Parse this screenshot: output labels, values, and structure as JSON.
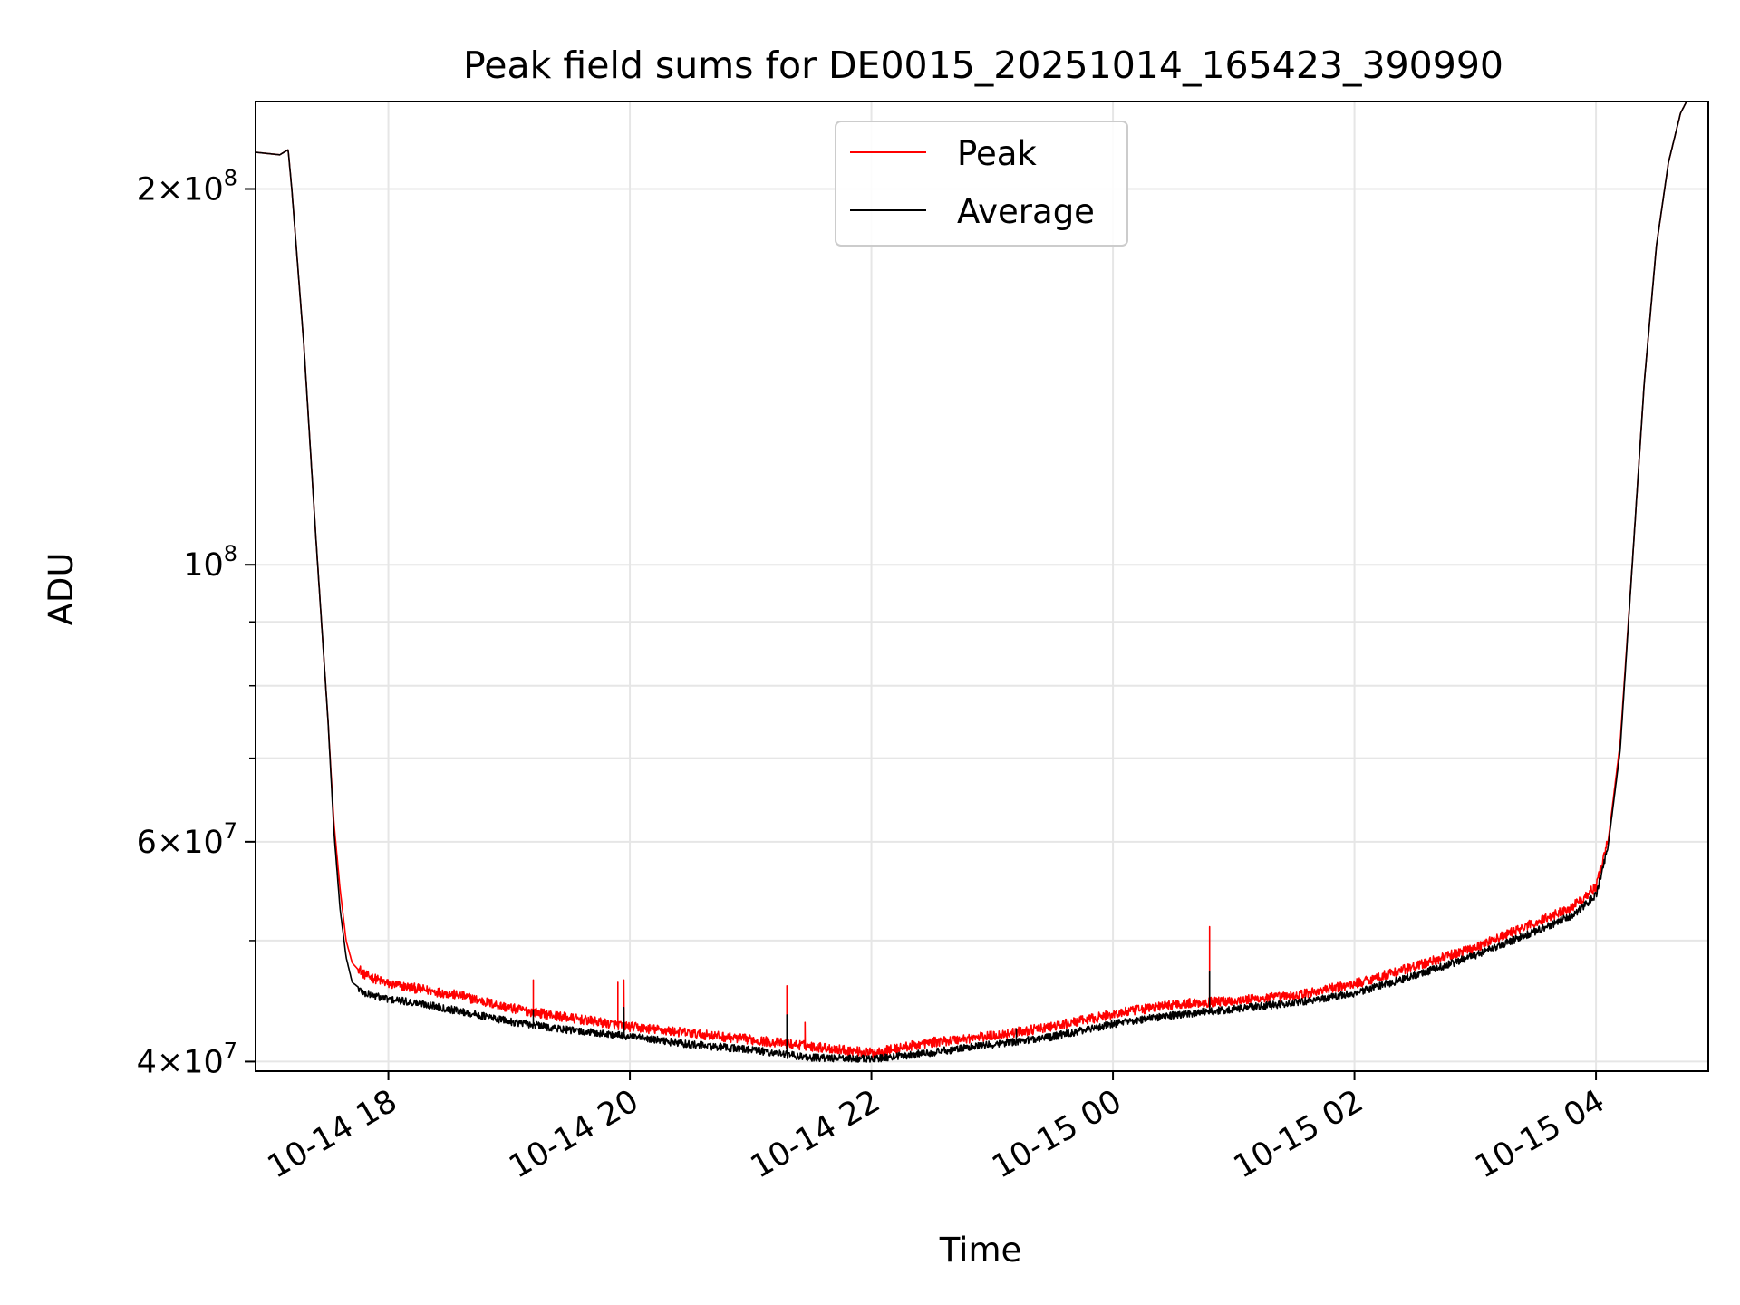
{
  "chart_data": {
    "type": "line",
    "title": "Peak field sums for DE0015_20251014_165423_390990",
    "xlabel": "Time",
    "ylabel": "ADU",
    "yscale": "log",
    "ylim": [
      39300000,
      235000000
    ],
    "xlim_hours": [
      16.9,
      28.93
    ],
    "grid": true,
    "legend_position": "upper center",
    "x_ticks": [
      {
        "hour": 18,
        "label": "10-14 18"
      },
      {
        "hour": 20,
        "label": "10-14 20"
      },
      {
        "hour": 22,
        "label": "10-14 22"
      },
      {
        "hour": 24,
        "label": "10-15 00"
      },
      {
        "hour": 26,
        "label": "10-15 02"
      },
      {
        "hour": 28,
        "label": "10-15 04"
      }
    ],
    "y_ticks_major": [
      {
        "value": 40000000,
        "base": "4",
        "times": "×",
        "exp_base": "10",
        "exp": "7"
      },
      {
        "value": 60000000,
        "base": "6",
        "times": "×",
        "exp_base": "10",
        "exp": "7"
      },
      {
        "value": 100000000,
        "base": "",
        "times": "",
        "exp_base": "10",
        "exp": "8"
      },
      {
        "value": 200000000,
        "base": "2",
        "times": "×",
        "exp_base": "10",
        "exp": "8"
      }
    ],
    "y_ticks_minor": [
      50000000,
      70000000,
      80000000,
      90000000
    ],
    "series": [
      {
        "name": "Peak",
        "color": "#ff0000",
        "time_hours": [
          16.9,
          17.1,
          17.17,
          17.2,
          17.3,
          17.4,
          17.5,
          17.55,
          17.6,
          17.65,
          17.7,
          17.8,
          18.0,
          18.3,
          18.6,
          19.0,
          19.5,
          20.0,
          20.5,
          21.0,
          21.5,
          22.0,
          22.5,
          23.0,
          23.5,
          24.0,
          24.5,
          25.0,
          25.5,
          26.0,
          26.5,
          27.0,
          27.5,
          27.8,
          28.0,
          28.1,
          28.2,
          28.3,
          28.4,
          28.5,
          28.6,
          28.7,
          28.75,
          28.8
        ],
        "adu": [
          214000000,
          213000000,
          215000000,
          200000000,
          150000000,
          105000000,
          75000000,
          62000000,
          55000000,
          50000000,
          48000000,
          46800000,
          46000000,
          45500000,
          45000000,
          44000000,
          43200000,
          42500000,
          42000000,
          41500000,
          41000000,
          40500000,
          41300000,
          41800000,
          42500000,
          43500000,
          44300000,
          44600000,
          45000000,
          46000000,
          47500000,
          49200000,
          51500000,
          53000000,
          55000000,
          60000000,
          72000000,
          100000000,
          140000000,
          180000000,
          210000000,
          230000000,
          235000000,
          235000000
        ],
        "spikes": [
          {
            "hour": 19.2,
            "adu": 46500000
          },
          {
            "hour": 19.9,
            "adu": 46300000
          },
          {
            "hour": 19.95,
            "adu": 46500000
          },
          {
            "hour": 21.3,
            "adu": 46000000
          },
          {
            "hour": 21.45,
            "adu": 43000000
          },
          {
            "hour": 24.8,
            "adu": 51300000
          }
        ]
      },
      {
        "name": "Average",
        "color": "#000000",
        "time_hours": [
          16.9,
          17.1,
          17.17,
          17.2,
          17.3,
          17.4,
          17.5,
          17.55,
          17.6,
          17.65,
          17.7,
          17.8,
          18.0,
          18.3,
          18.6,
          19.0,
          19.5,
          20.0,
          20.5,
          21.0,
          21.5,
          22.0,
          22.5,
          23.0,
          23.5,
          24.0,
          24.5,
          25.0,
          25.5,
          26.0,
          26.5,
          27.0,
          27.5,
          27.8,
          28.0,
          28.1,
          28.2,
          28.3,
          28.4,
          28.5,
          28.6,
          28.7,
          28.75,
          28.8
        ],
        "adu": [
          214000000,
          213000000,
          215000000,
          200000000,
          150000000,
          105000000,
          75000000,
          61000000,
          53000000,
          48500000,
          46300000,
          45500000,
          45000000,
          44600000,
          44000000,
          43200000,
          42500000,
          42000000,
          41400000,
          41000000,
          40400000,
          40300000,
          40800000,
          41400000,
          42000000,
          43000000,
          43700000,
          44200000,
          44700000,
          45500000,
          47000000,
          48800000,
          51000000,
          52500000,
          54500000,
          59500000,
          71000000,
          100000000,
          140000000,
          180000000,
          210000000,
          230000000,
          235000000,
          235000000
        ],
        "spikes": [
          {
            "hour": 19.2,
            "adu": 44000000
          },
          {
            "hour": 19.95,
            "adu": 44200000
          },
          {
            "hour": 21.3,
            "adu": 43600000
          },
          {
            "hour": 23.2,
            "adu": 42500000
          },
          {
            "hour": 24.8,
            "adu": 47200000
          }
        ]
      }
    ]
  }
}
